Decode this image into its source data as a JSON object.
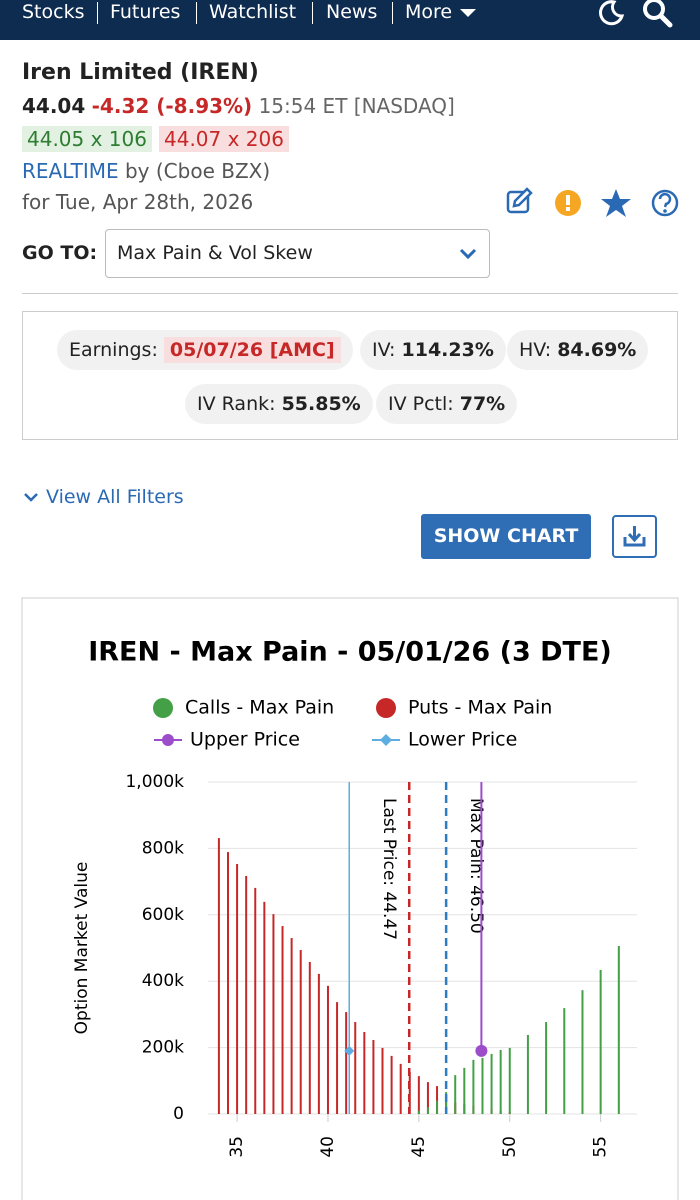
{
  "nav": {
    "items": [
      "Stocks",
      "Futures",
      "Watchlist",
      "News",
      "More"
    ]
  },
  "quote": {
    "name": "Iren Limited (IREN)",
    "last": "44.04",
    "change": "-4.32 (-8.93%)",
    "time": "15:54 ET [NASDAQ]",
    "bid": "44.05 x 106",
    "ask": "44.07 x 206",
    "realtime": "REALTIME",
    "source": "by (Cboe BZX)",
    "date": "for Tue, Apr 28th, 2026"
  },
  "goto": {
    "label": "GO TO:",
    "selected": "Max Pain & Vol Skew"
  },
  "stats": {
    "earnings_label": "Earnings:",
    "earnings": "05/07/26 [AMC]",
    "iv_label": "IV:",
    "iv": "114.23%",
    "hv_label": "HV:",
    "hv": "84.69%",
    "iv_rank_label": "IV Rank:",
    "iv_rank": "55.85%",
    "iv_pctl_label": "IV Pctl:",
    "iv_pctl": "77%"
  },
  "filters": "View All Filters",
  "show_chart": "SHOW CHART",
  "chart_data": {
    "type": "bar",
    "title": "IREN - Max Pain - 05/01/26 (3 DTE)",
    "y_label": "Option Market Value",
    "x": [
      34,
      34.5,
      35,
      35.5,
      36,
      36.5,
      37,
      37.5,
      38,
      38.5,
      39,
      39.5,
      40,
      40.5,
      41,
      41.5,
      42,
      42.5,
      43,
      43.5,
      44,
      44.5,
      45,
      45.5,
      46,
      46.5,
      47,
      47.5,
      48,
      48.5,
      49,
      49.5,
      50,
      51,
      52,
      53,
      54,
      55,
      56
    ],
    "series": [
      {
        "name": "Calls - Max Pain",
        "color": "#43a047",
        "values": [
          0,
          0,
          0,
          0,
          0,
          0,
          0,
          0,
          0,
          0,
          0,
          0,
          0,
          0,
          0,
          0,
          0,
          0,
          0,
          0,
          0,
          0,
          10000,
          20000,
          40000,
          66000,
          117000,
          139000,
          163000,
          169000,
          181000,
          193000,
          199000,
          238000,
          277000,
          319000,
          373000,
          434000,
          506000
        ]
      },
      {
        "name": "Puts - Max Pain",
        "color": "#c62828",
        "values": [
          831000,
          789000,
          753000,
          717000,
          681000,
          639000,
          602000,
          566000,
          530000,
          494000,
          458000,
          422000,
          386000,
          337000,
          307000,
          277000,
          247000,
          223000,
          199000,
          175000,
          151000,
          127000,
          114000,
          96000,
          84000,
          40000,
          35000,
          30000,
          25000,
          20000,
          15000,
          10000,
          5000,
          0,
          0,
          0,
          0,
          0,
          0
        ]
      }
    ],
    "markers": [
      {
        "name": "Upper Price",
        "color": "#9b4dca",
        "x": 48.44,
        "value": 190000
      },
      {
        "name": "Lower Price",
        "color": "#5dade2",
        "x": 41.17,
        "value": 190000
      }
    ],
    "reference_lines": [
      {
        "label": "Last Price: 44.47",
        "value": 44.47,
        "color": "#c62828"
      },
      {
        "label": "Max Pain: 46.50",
        "value": 46.5,
        "color": "#2f7dc1"
      }
    ],
    "xlim": [
      33.4,
      57.0
    ],
    "xticks": [
      35,
      40,
      45,
      50,
      55
    ],
    "ylim": [
      0,
      1000000
    ],
    "yticks": [
      {
        "value": 0,
        "label": "0"
      },
      {
        "value": 200000,
        "label": "200k"
      },
      {
        "value": 400000,
        "label": "400k"
      },
      {
        "value": 600000,
        "label": "600k"
      },
      {
        "value": 800000,
        "label": "800k"
      },
      {
        "value": 1000000,
        "label": "1,000k"
      }
    ],
    "grid": true
  }
}
